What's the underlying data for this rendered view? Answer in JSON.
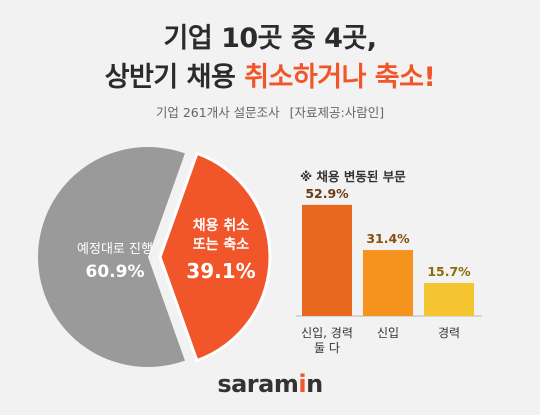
{
  "header": {
    "title_line1": "기업 10곳 중 4곳,",
    "title_line2_prefix": "상반기 채용",
    "title_line2_highlight": "취소하거나 축소!",
    "subtitle_survey": "기업 261개사 설문조사",
    "subtitle_source": "[자료제공:사람인]"
  },
  "colors": {
    "accent": "#f0562a",
    "pie_gray": "#9a9a9a",
    "bar_1": "#e8681f",
    "bar_2": "#f5931e",
    "bar_3": "#f5c431"
  },
  "chart_data": [
    {
      "type": "pie",
      "slices": [
        {
          "label": "예정대로 진행",
          "value": 60.9,
          "value_label": "60.9%"
        },
        {
          "label_line1": "채용 취소",
          "label_line2": "또는 축소",
          "value": 39.1,
          "value_label": "39.1%"
        }
      ]
    },
    {
      "type": "bar",
      "title": "※ 채용 변동된 부문",
      "categories": [
        "신입, 경력 둘 다",
        "신입",
        "경력"
      ],
      "category_lines": [
        [
          "신입, 경력",
          "둘 다"
        ],
        [
          "신입"
        ],
        [
          "경력"
        ]
      ],
      "values": [
        52.9,
        31.4,
        15.7
      ],
      "value_labels": [
        "52.9%",
        "31.4%",
        "15.7%"
      ],
      "ylim": [
        0,
        60
      ]
    }
  ],
  "footer": {
    "logo_text_a": "saram",
    "logo_text_b": "i",
    "logo_text_c": "n"
  }
}
